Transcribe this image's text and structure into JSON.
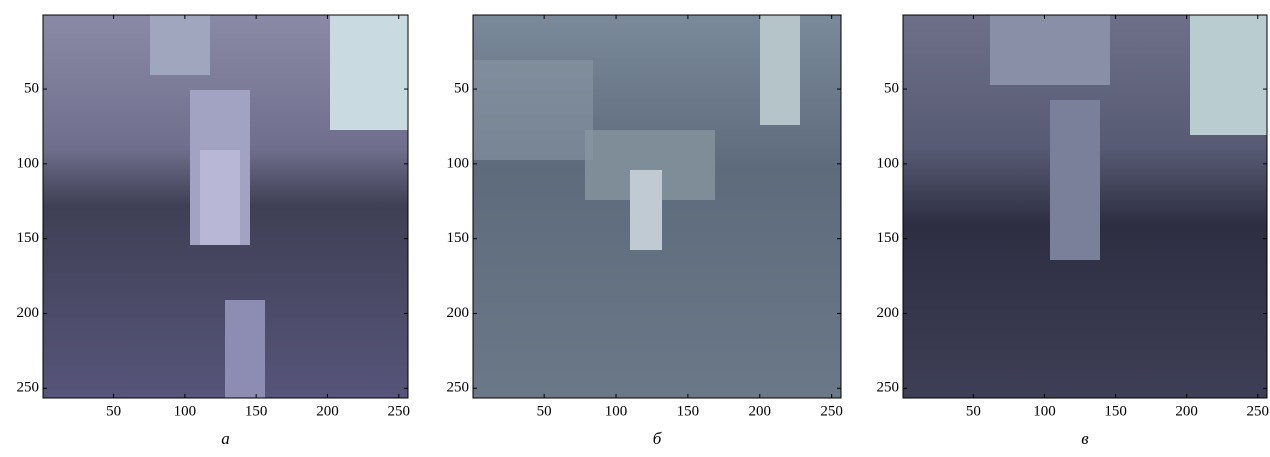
{
  "chart_data": [
    {
      "type": "image",
      "caption": "а",
      "xlim": [
        0.5,
        256.5
      ],
      "ylim": [
        0.5,
        256.5
      ],
      "xticks": [
        50,
        100,
        150,
        200,
        250
      ],
      "yticks": [
        50,
        100,
        150,
        200,
        250
      ]
    },
    {
      "type": "image",
      "caption": "б",
      "xlim": [
        0.5,
        256.5
      ],
      "ylim": [
        0.5,
        256.5
      ],
      "xticks": [
        50,
        100,
        150,
        200,
        250
      ],
      "yticks": [
        50,
        100,
        150,
        200,
        250
      ]
    },
    {
      "type": "image",
      "caption": "в",
      "xlim": [
        0.5,
        256.5
      ],
      "ylim": [
        0.5,
        256.5
      ],
      "xticks": [
        50,
        100,
        150,
        200,
        250
      ],
      "yticks": [
        50,
        100,
        150,
        200,
        250
      ]
    }
  ]
}
